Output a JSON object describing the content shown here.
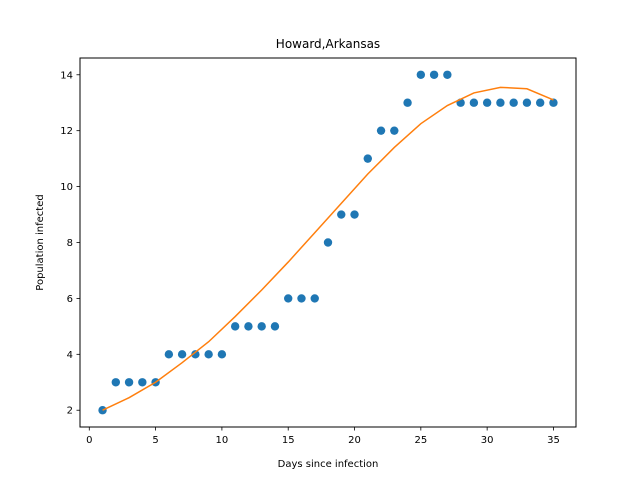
{
  "chart_data": {
    "type": "scatter",
    "title": "Howard,Arkansas",
    "xlabel": "Days since infection",
    "ylabel": "Population infected",
    "xlim": [
      -0.7,
      36.7
    ],
    "ylim": [
      1.4,
      14.6
    ],
    "xticks": [
      0,
      5,
      10,
      15,
      20,
      25,
      30,
      35
    ],
    "yticks": [
      2,
      4,
      6,
      8,
      10,
      12,
      14
    ],
    "grid": false,
    "series": [
      {
        "kind": "scatter",
        "color": "#1f77b4",
        "x": [
          1,
          2,
          3,
          4,
          5,
          6,
          7,
          8,
          9,
          10,
          11,
          12,
          13,
          14,
          15,
          16,
          17,
          18,
          19,
          20,
          21,
          22,
          23,
          24,
          25,
          26,
          27,
          28,
          29,
          30,
          31,
          32,
          33,
          34,
          35
        ],
        "y": [
          2,
          3,
          3,
          3,
          3,
          4,
          4,
          4,
          4,
          4,
          5,
          5,
          5,
          5,
          6,
          6,
          6,
          8,
          9,
          9,
          11,
          12,
          12,
          13,
          14,
          14,
          14,
          13,
          13,
          13,
          13,
          13,
          13,
          13,
          13
        ]
      },
      {
        "kind": "line",
        "color": "#ff7f0e",
        "x": [
          1,
          3,
          5,
          7,
          9,
          11,
          13,
          15,
          17,
          19,
          21,
          23,
          25,
          27,
          29,
          31,
          33,
          35
        ],
        "y": [
          2.0,
          2.45,
          3.0,
          3.7,
          4.45,
          5.35,
          6.3,
          7.3,
          8.35,
          9.4,
          10.45,
          11.4,
          12.25,
          12.9,
          13.35,
          13.55,
          13.5,
          13.1
        ]
      }
    ]
  }
}
